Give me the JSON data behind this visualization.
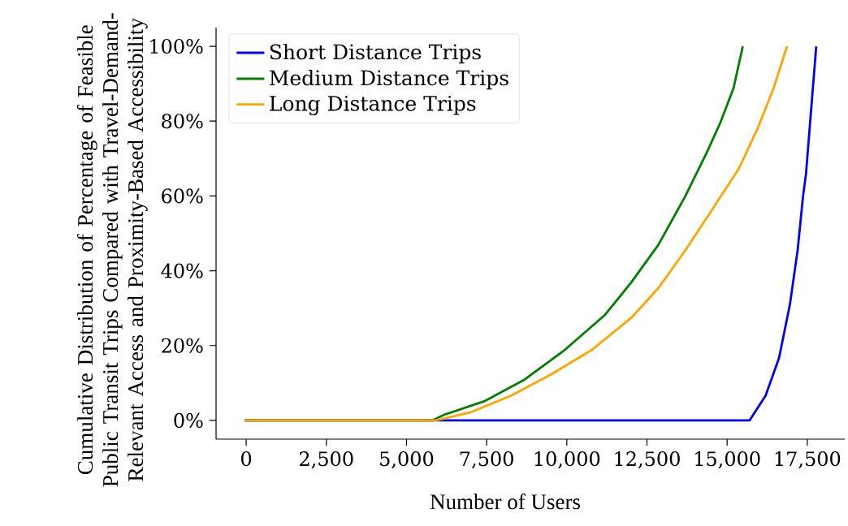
{
  "chart_data": {
    "type": "line",
    "xlabel": "Number of Users",
    "ylabel": "Cumulative Distribution of Percentage of Feasible Public Transit Trips Compared with Travel-Demand-Relevant Access and Proximity-Based Accessibility",
    "xlim": [
      -940,
      18670
    ],
    "ylim": [
      -5,
      105
    ],
    "xticks": [
      {
        "value": 0,
        "label": "0"
      },
      {
        "value": 2500,
        "label": "2,500"
      },
      {
        "value": 5000,
        "label": "5,000"
      },
      {
        "value": 7500,
        "label": "7,500"
      },
      {
        "value": 10000,
        "label": "10,000"
      },
      {
        "value": 12500,
        "label": "12,500"
      },
      {
        "value": 15000,
        "label": "15,000"
      },
      {
        "value": 17500,
        "label": "17,500"
      }
    ],
    "yticks": [
      {
        "value": 0,
        "label": "0%"
      },
      {
        "value": 20,
        "label": "20%"
      },
      {
        "value": 40,
        "label": "40%"
      },
      {
        "value": 60,
        "label": "60%"
      },
      {
        "value": 80,
        "label": "80%"
      },
      {
        "value": 100,
        "label": "100%"
      }
    ],
    "legend": "top left",
    "marker": "none",
    "line_style": "solid",
    "series": [
      {
        "name": "Short Distance Trips",
        "color": "#0000ff",
        "x": [
          -50,
          15700,
          16200,
          16620,
          16960,
          17200,
          17370,
          17460,
          17780
        ],
        "values": [
          0,
          0,
          6.6,
          16.7,
          31,
          45.5,
          60,
          65.8,
          100
        ]
      },
      {
        "name": "Medium Distance Trips",
        "color": "#008000",
        "x": [
          -50,
          5800,
          6170,
          7420,
          8680,
          9930,
          11190,
          12020,
          12860,
          13700,
          14360,
          14780,
          15200,
          15490
        ],
        "values": [
          0,
          0,
          1.5,
          5.1,
          10.9,
          18.8,
          28.2,
          37,
          47,
          60,
          71.5,
          79.4,
          88.8,
          100
        ]
      },
      {
        "name": "Long Distance Trips",
        "color": "#ffa500",
        "x": [
          -50,
          5900,
          6170,
          7010,
          8260,
          9510,
          10770,
          12020,
          12860,
          13700,
          14530,
          15360,
          15950,
          16450,
          16870
        ],
        "values": [
          0,
          0,
          0.5,
          2.2,
          6.6,
          12.3,
          18.8,
          27.5,
          35.4,
          45.5,
          56.3,
          67.2,
          78,
          88.8,
          100
        ]
      }
    ]
  }
}
